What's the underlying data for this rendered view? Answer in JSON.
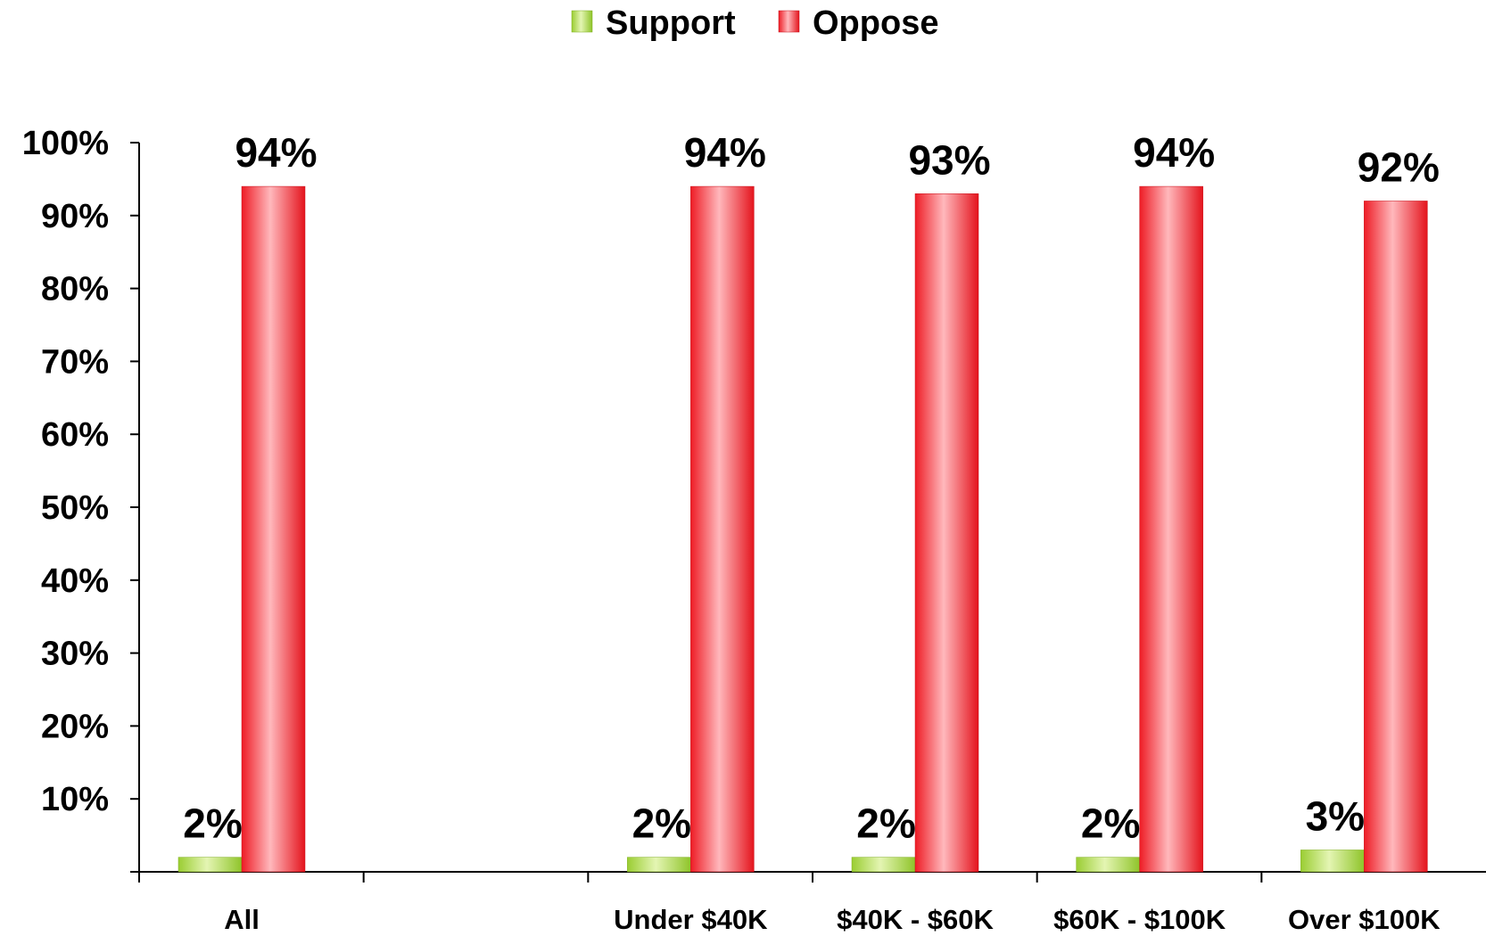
{
  "chart_data": {
    "type": "bar",
    "categories": [
      "All",
      "",
      "Under $40K",
      "$40K - $60K",
      "$60K - $100K",
      "Over $100K"
    ],
    "series": [
      {
        "name": "Support",
        "values": [
          2,
          null,
          2,
          2,
          2,
          3
        ],
        "labels": [
          "2%",
          "",
          "2%",
          "2%",
          "2%",
          "3%"
        ],
        "color": "#9acd32"
      },
      {
        "name": "Oppose",
        "values": [
          94,
          null,
          94,
          93,
          94,
          92
        ],
        "labels": [
          "94%",
          "",
          "94%",
          "93%",
          "94%",
          "92%"
        ],
        "color": "#ee1c25"
      }
    ],
    "ylim": [
      0,
      100
    ],
    "y_ticks": [
      "10%",
      "20%",
      "30%",
      "40%",
      "50%",
      "60%",
      "70%",
      "80%",
      "90%",
      "100%"
    ],
    "grid": false,
    "legend_position": "top-center",
    "xlabel": "",
    "ylabel": "",
    "title": ""
  }
}
